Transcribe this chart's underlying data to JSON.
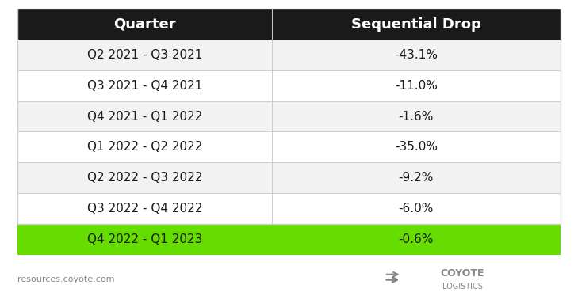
{
  "quarters": [
    "Q2 2021 - Q3 2021",
    "Q3 2021 - Q4 2021",
    "Q4 2021 - Q1 2022",
    "Q1 2022 - Q2 2022",
    "Q2 2022 - Q3 2022",
    "Q3 2022 - Q4 2022",
    "Q4 2022 - Q1 2023"
  ],
  "drops": [
    "-43.1%",
    "-11.0%",
    "-1.6%",
    "-35.0%",
    "-9.2%",
    "-6.0%",
    "-0.6%"
  ],
  "header_bg": "#1a1a1a",
  "header_text": "#ffffff",
  "row_bg_odd": "#f2f2f2",
  "row_bg_even": "#ffffff",
  "highlight_bg": "#66dd00",
  "highlight_text": "#1a1a1a",
  "normal_text": "#1a1a1a",
  "col_header_1": "Quarter",
  "col_header_2": "Sequential Drop",
  "footer_text": "resources.coyote.com",
  "footer_text_color": "#888888",
  "logo_text_1": "COYOTE",
  "logo_text_2": "LOGISTICS",
  "logo_color": "#888888",
  "bg_color": "#ffffff",
  "divider_color": "#cccccc"
}
